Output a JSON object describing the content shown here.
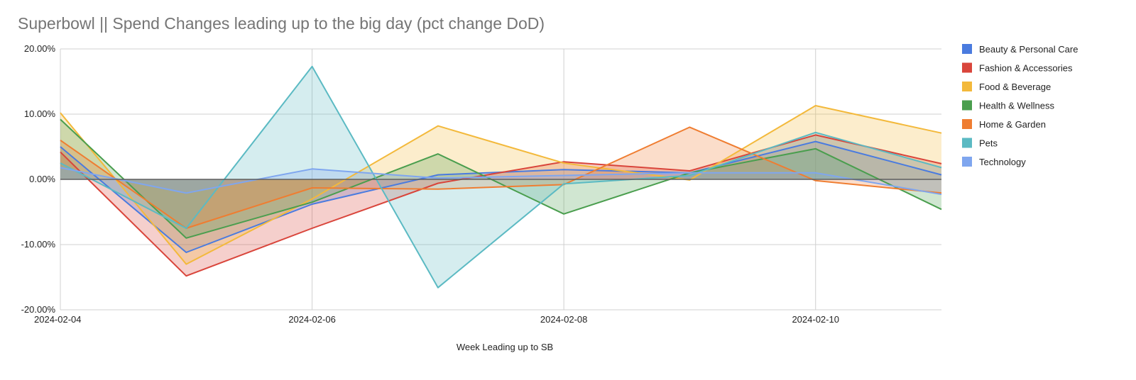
{
  "chart_data": {
    "type": "area",
    "title": "Superbowl || Spend Changes leading up to the big day (pct change DoD)",
    "xlabel": "Week Leading up to SB",
    "ylabel": "",
    "x": [
      "2024-02-04",
      "2024-02-05",
      "2024-02-06",
      "2024-02-07",
      "2024-02-08",
      "2024-02-09",
      "2024-02-10",
      "2024-02-11"
    ],
    "x_tick_labels": [
      "2024-02-04",
      "2024-02-06",
      "2024-02-08",
      "2024-02-10"
    ],
    "y_tick_labels": [
      "20.00%",
      "10.00%",
      "0.00%",
      "-10.00%",
      "-20.00%"
    ],
    "ylim": [
      -20,
      20
    ],
    "grid": true,
    "legend_position": "right",
    "series": [
      {
        "name": "Beauty & Personal Care",
        "color": "#4a7bdf",
        "values": [
          5.0,
          -11.2,
          -3.8,
          0.7,
          1.5,
          1.0,
          5.8,
          0.7
        ]
      },
      {
        "name": "Fashion & Accessories",
        "color": "#d9453b",
        "values": [
          4.2,
          -14.8,
          -7.5,
          -0.6,
          2.7,
          1.3,
          6.8,
          2.4
        ]
      },
      {
        "name": "Food & Beverage",
        "color": "#f3b93b",
        "values": [
          10.2,
          -13.0,
          -3.0,
          8.2,
          2.5,
          -0.1,
          11.3,
          7.1
        ]
      },
      {
        "name": "Health & Wellness",
        "color": "#4a9e4e",
        "values": [
          9.2,
          -9.0,
          -3.5,
          3.9,
          -5.3,
          1.0,
          4.7,
          -4.6
        ]
      },
      {
        "name": "Home & Garden",
        "color": "#ef7d31",
        "values": [
          6.0,
          -7.5,
          -1.3,
          -1.5,
          -0.8,
          8.0,
          -0.2,
          -2.1
        ]
      },
      {
        "name": "Pets",
        "color": "#5bbac3",
        "values": [
          2.5,
          -7.5,
          17.3,
          -16.6,
          -0.7,
          0.6,
          7.2,
          1.8
        ]
      },
      {
        "name": "Technology",
        "color": "#7fa6ef",
        "values": [
          1.8,
          -2.1,
          1.6,
          0.2,
          0.6,
          1.0,
          1.0,
          -2.3
        ]
      }
    ]
  }
}
